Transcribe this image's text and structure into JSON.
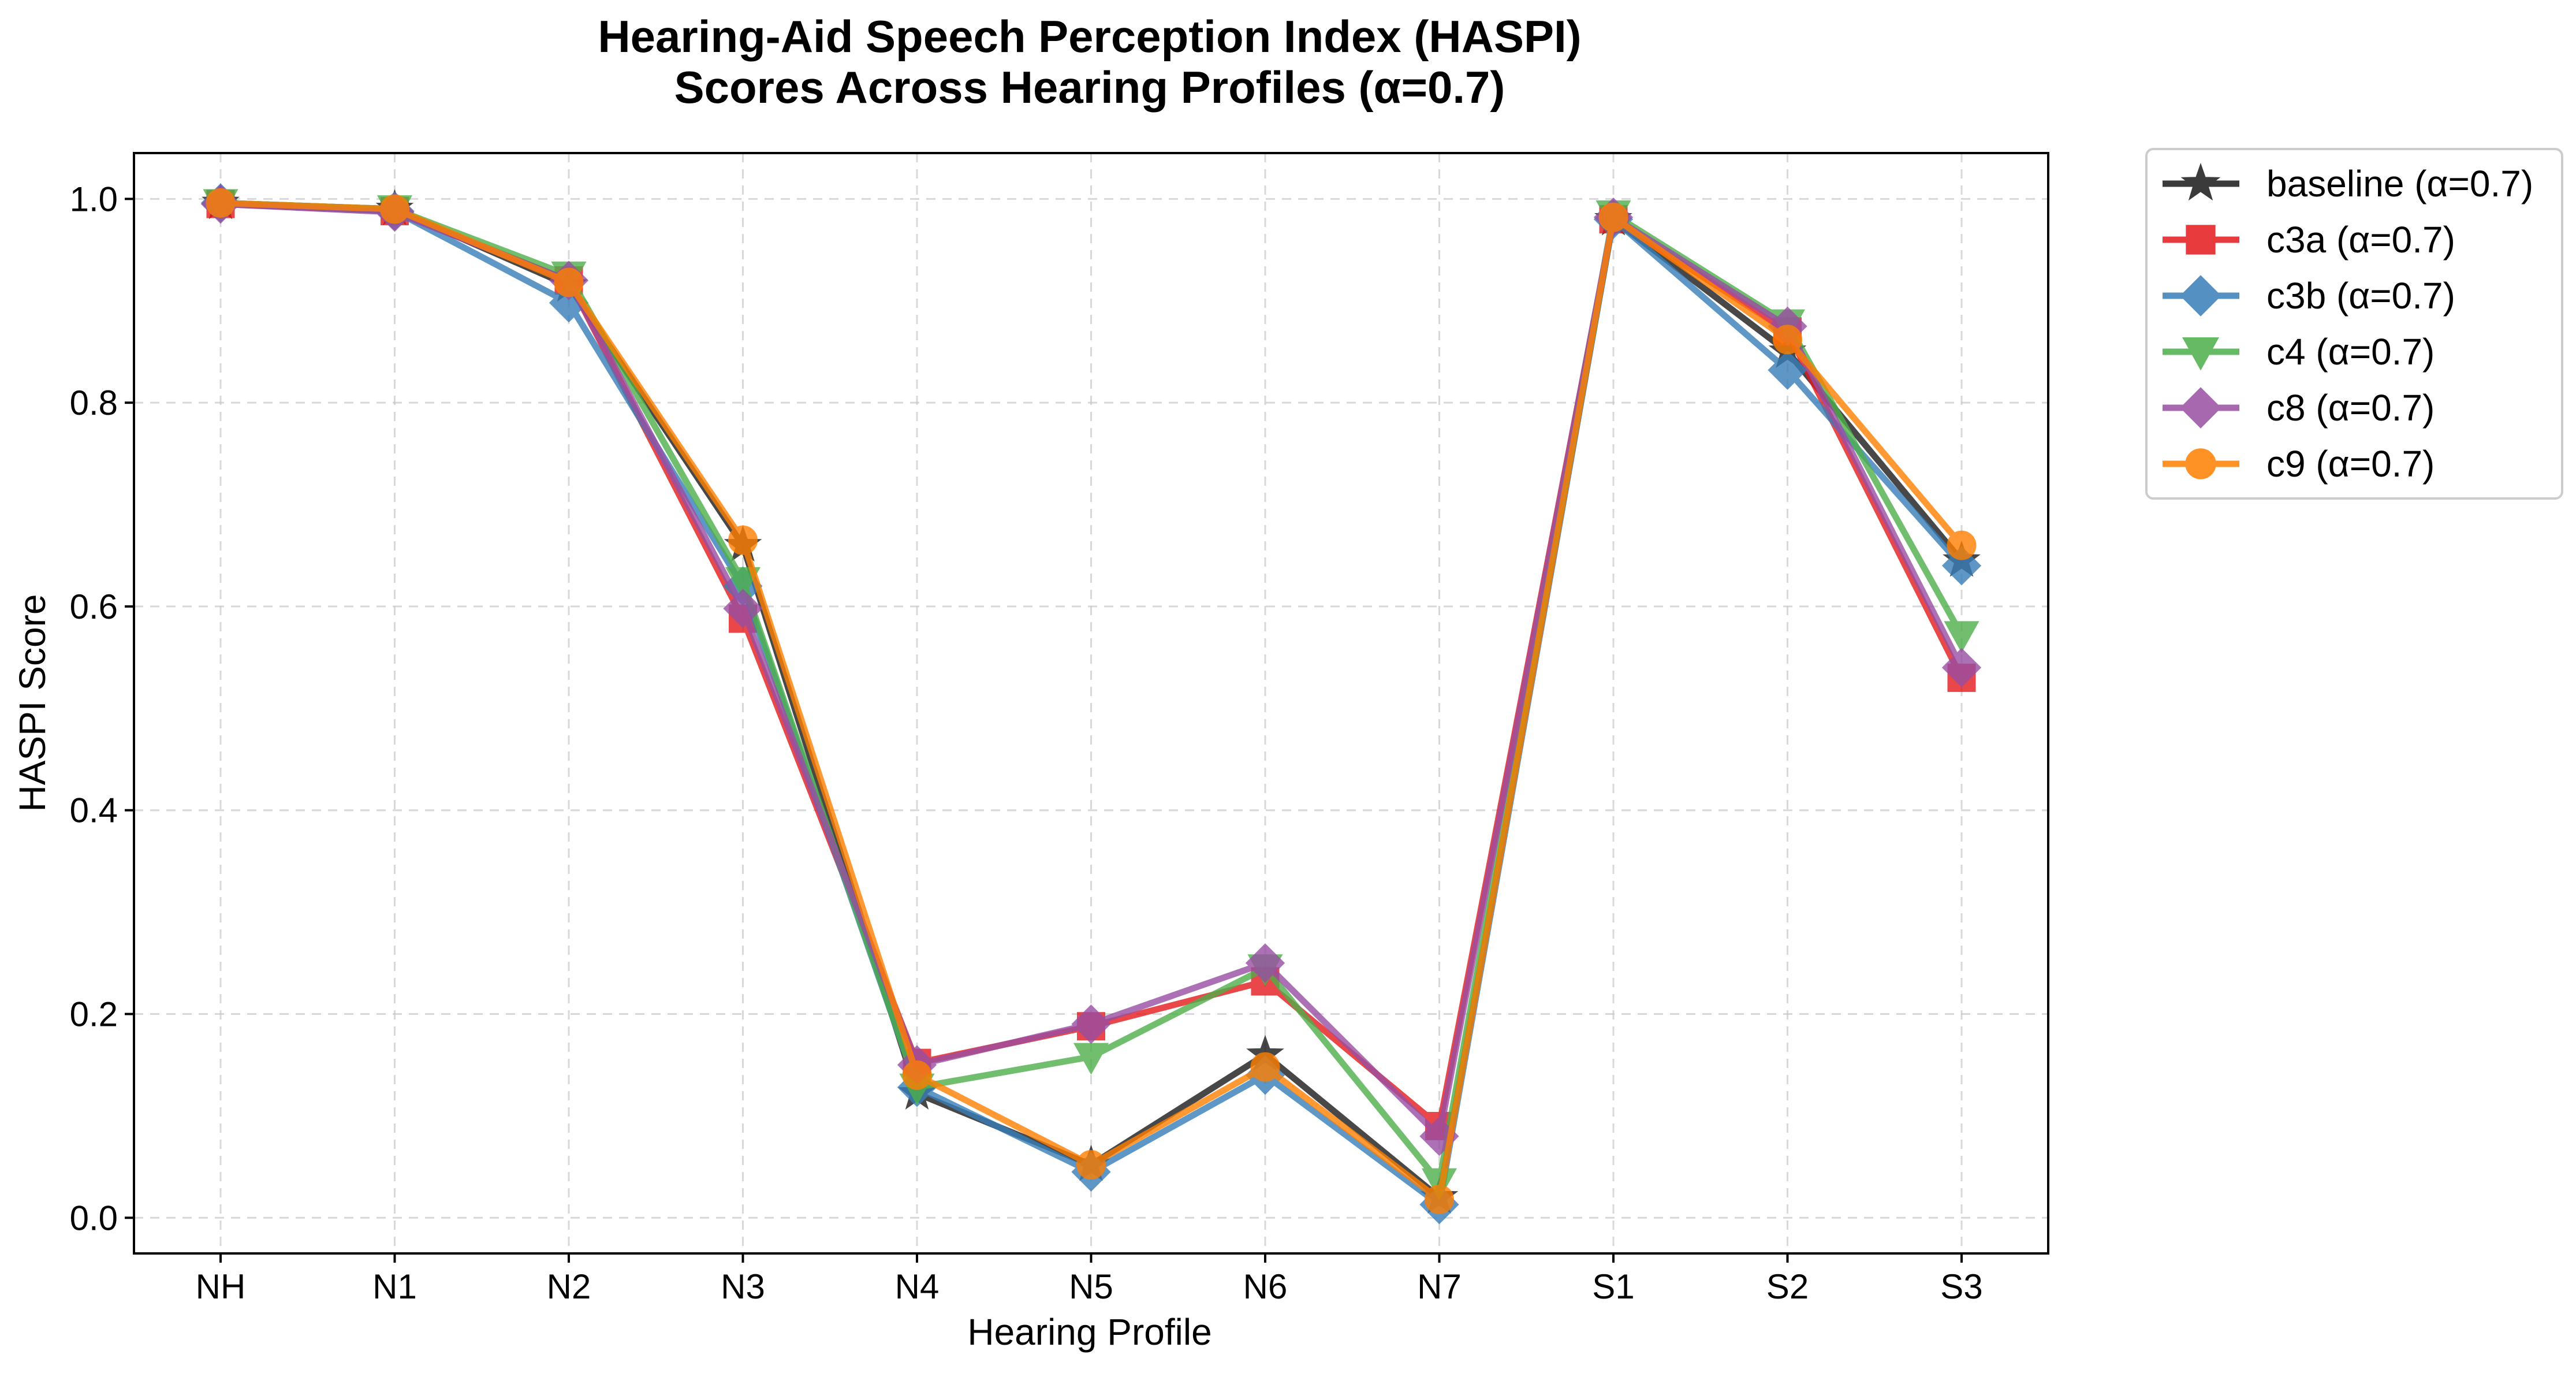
{
  "chart_data": {
    "type": "line",
    "title": [
      "Hearing-Aid Speech Perception Index (HASPI)",
      "Scores Across Hearing Profiles (α=0.7)"
    ],
    "xlabel": "Hearing Profile",
    "ylabel": "HASPI Score",
    "categories": [
      "NH",
      "N1",
      "N2",
      "N3",
      "N4",
      "N5",
      "N6",
      "N7",
      "S1",
      "S2",
      "S3"
    ],
    "ylim": [
      -0.035,
      1.045
    ],
    "yticks": [
      "0.0",
      "0.2",
      "0.4",
      "0.6",
      "0.8",
      "1.0"
    ],
    "grid": true,
    "legend_position": "outside-right",
    "series": [
      {
        "name": "baseline (α=0.7)",
        "color": "#1a1a1a",
        "marker": "star",
        "values": [
          0.996,
          0.99,
          0.915,
          0.66,
          0.122,
          0.052,
          0.16,
          0.02,
          0.98,
          0.85,
          0.645
        ]
      },
      {
        "name": "c3a (α=0.7)",
        "color": "#e41a1c",
        "marker": "square",
        "values": [
          0.995,
          0.988,
          0.92,
          0.588,
          0.152,
          0.188,
          0.232,
          0.09,
          0.98,
          0.87,
          0.53
        ]
      },
      {
        "name": "c3b (α=0.7)",
        "color": "#377eb8",
        "marker": "diamond",
        "values": [
          0.996,
          0.988,
          0.898,
          0.62,
          0.128,
          0.045,
          0.14,
          0.013,
          0.98,
          0.832,
          0.64
        ]
      },
      {
        "name": "c4 (α=0.7)",
        "color": "#4daf4a",
        "marker": "triangle-down",
        "values": [
          0.996,
          0.99,
          0.925,
          0.625,
          0.128,
          0.158,
          0.245,
          0.035,
          0.985,
          0.878,
          0.572
        ]
      },
      {
        "name": "c8 (α=0.7)",
        "color": "#984ea3",
        "marker": "diamond",
        "values": [
          0.995,
          0.987,
          0.92,
          0.598,
          0.15,
          0.19,
          0.25,
          0.08,
          0.982,
          0.875,
          0.54
        ]
      },
      {
        "name": "c9 (α=0.7)",
        "color": "#ff7f00",
        "marker": "circle",
        "values": [
          0.996,
          0.99,
          0.918,
          0.665,
          0.14,
          0.052,
          0.148,
          0.018,
          0.982,
          0.862,
          0.66
        ]
      }
    ]
  }
}
